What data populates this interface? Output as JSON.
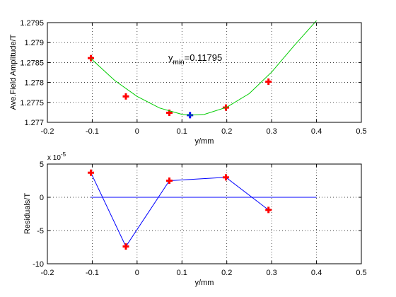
{
  "chart_data": [
    {
      "type": "scatter",
      "xlabel": "y/mm",
      "ylabel": "Ave.Field Amplitude/T",
      "xlim": [
        -0.2,
        0.5
      ],
      "ylim": [
        1.277,
        1.2795
      ],
      "xticks": [
        "-0.2",
        "-0.1",
        "0",
        "0.1",
        "0.2",
        "0.3",
        "0.4",
        "0.5"
      ],
      "yticks": [
        "1.277",
        "1.2775",
        "1.278",
        "1.2785",
        "1.279",
        "1.2795"
      ],
      "grid": true,
      "annotation": {
        "prefix": "y",
        "subscript": "min",
        "suffix": "=0.11795",
        "x": 0.11795
      },
      "series": [
        {
          "color": "#ff0000",
          "marker": "plus",
          "x": [
            -0.103,
            -0.025,
            0.072,
            0.198,
            0.293
          ],
          "y": [
            1.27861,
            1.27765,
            1.27724,
            1.27737,
            1.27802
          ]
        },
        {
          "color": "#0000ff",
          "marker": "plus",
          "x": [
            0.118
          ],
          "y": [
            1.27718
          ]
        },
        {
          "color": "#00cc00",
          "marker": "line",
          "x": [
            -0.103,
            -0.05,
            0.0,
            0.05,
            0.1,
            0.118,
            0.15,
            0.2,
            0.25,
            0.3,
            0.35,
            0.4
          ],
          "y": [
            1.2786,
            1.27805,
            1.27765,
            1.27736,
            1.2772,
            1.27718,
            1.2772,
            1.27738,
            1.27772,
            1.27826,
            1.27892,
            1.27955
          ]
        }
      ]
    },
    {
      "type": "line",
      "xlabel": "y/mm",
      "ylabel": "Residuals/T",
      "exponent_label": "x 10",
      "exponent": "-5",
      "xlim": [
        -0.2,
        0.5
      ],
      "ylim": [
        -10,
        5
      ],
      "xticks": [
        "-0.2",
        "-0.1",
        "0",
        "0.1",
        "0.2",
        "0.3",
        "0.4",
        "0.5"
      ],
      "yticks": [
        "5",
        "0",
        "-5",
        "-10"
      ],
      "grid": true,
      "series": [
        {
          "color": "#0000ff",
          "marker": "plus-red",
          "x": [
            -0.103,
            -0.025,
            0.072,
            0.198,
            0.293
          ],
          "y": [
            3.7,
            -7.4,
            2.5,
            3.0,
            -1.9
          ]
        },
        {
          "color": "#0000ff",
          "marker": "line",
          "x": [
            -0.103,
            0.4
          ],
          "y": [
            0,
            0
          ]
        }
      ]
    }
  ]
}
